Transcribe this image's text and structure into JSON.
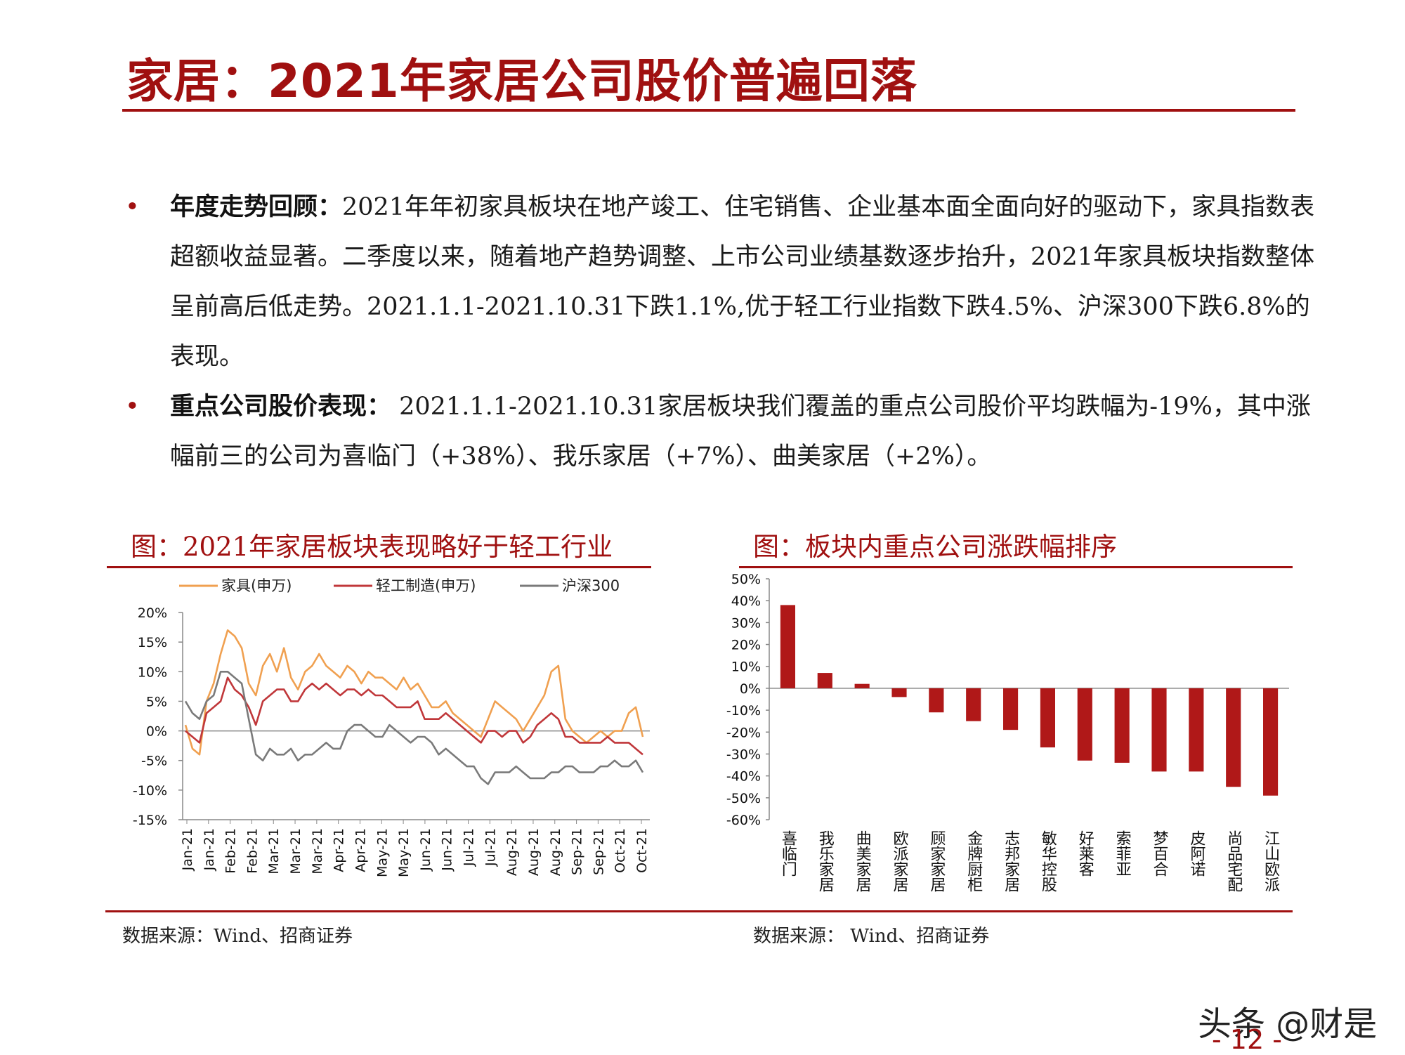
{
  "title": "家居：2021年家居公司股价普遍回落",
  "bullets": [
    {
      "lead": "年度走势回顾：",
      "text": "2021年年初家具板块在地产竣工、住宅销售、企业基本面全面向好的驱动下，家具指数表超额收益显著。二季度以来，随着地产趋势调整、上市公司业绩基数逐步抬升，2021年家具板块指数整体呈前高后低走势。2021.1.1-2021.10.31下跌1.1%,优于轻工行业指数下跌4.5%、沪深300下跌6.8%的表现。"
    },
    {
      "lead": "重点公司股价表现：",
      "text": " 2021.1.1-2021.10.31家居板块我们覆盖的重点公司股价平均跌幅为-19%，其中涨幅前三的公司为喜临门（+38%）、我乐家居（+7%）、曲美家居（+2%）。"
    }
  ],
  "left_chart": {
    "heading": "图：2021年家居板块表现略好于轻工行业",
    "source": "数据来源：Wind、招商证券"
  },
  "right_chart": {
    "heading": "图：板块内重点公司涨跌幅排序",
    "source": "数据来源： Wind、招商证券"
  },
  "watermark": "头条 @财是",
  "page_number": "- 12 -",
  "colors": {
    "accent": "#a01010",
    "furniture": "#f0a050",
    "light_industry": "#c0373a",
    "hs300": "#7a7a7a",
    "bar": "#b01818"
  },
  "chart_data": [
    {
      "type": "line",
      "title": "",
      "ylim": [
        -15,
        20
      ],
      "yticks": [
        "20%",
        "15%",
        "10%",
        "5%",
        "0%",
        "-5%",
        "-10%",
        "-15%"
      ],
      "ytick_values": [
        20,
        15,
        10,
        5,
        0,
        -5,
        -10,
        -15
      ],
      "x_labels": [
        "Jan-21",
        "Jan-21",
        "Feb-21",
        "Feb-21",
        "Mar-21",
        "Mar-21",
        "Mar-21",
        "Apr-21",
        "Apr-21",
        "May-21",
        "May-21",
        "Jun-21",
        "Jun-21",
        "Jul-21",
        "Jul-21",
        "Aug-21",
        "Aug-21",
        "Aug-21",
        "Sep-21",
        "Sep-21",
        "Oct-21",
        "Oct-21"
      ],
      "legend_position": "top",
      "series": [
        {
          "name": "家具(申万)",
          "color": "#f0a050",
          "values": [
            1,
            -3,
            -4,
            5,
            8,
            13,
            17,
            16,
            14,
            8,
            6,
            11,
            13,
            10,
            14,
            9,
            7,
            10,
            11,
            13,
            11,
            10,
            9,
            11,
            10,
            8,
            10,
            9,
            9,
            8,
            7,
            9,
            7,
            8,
            6,
            4,
            4,
            5,
            3,
            2,
            1,
            0,
            -1,
            2,
            5,
            4,
            3,
            2,
            0,
            2,
            4,
            6,
            10,
            11,
            2,
            0,
            -1,
            -2,
            -1,
            0,
            -1,
            0,
            0,
            3,
            4,
            -1
          ]
        },
        {
          "name": "轻工制造(申万)",
          "color": "#c0373a",
          "values": [
            0,
            -1,
            -2,
            3,
            4,
            5,
            9,
            7,
            6,
            4,
            1,
            5,
            6,
            7,
            7,
            5,
            5,
            7,
            8,
            7,
            8,
            7,
            6,
            7,
            7,
            6,
            7,
            6,
            6,
            5,
            4,
            4,
            4,
            5,
            2,
            2,
            2,
            3,
            2,
            1,
            0,
            -1,
            -2,
            0,
            0,
            -1,
            0,
            0,
            -2,
            -1,
            1,
            2,
            3,
            2,
            -1,
            -1,
            -2,
            -2,
            -2,
            -2,
            -1,
            -2,
            -2,
            -2,
            -3,
            -4
          ]
        },
        {
          "name": "沪深300",
          "color": "#7a7a7a",
          "values": [
            5,
            3,
            2,
            5,
            6,
            10,
            10,
            9,
            8,
            2,
            -4,
            -5,
            -3,
            -4,
            -4,
            -3,
            -5,
            -4,
            -4,
            -3,
            -2,
            -3,
            -3,
            0,
            1,
            1,
            0,
            -1,
            -1,
            1,
            0,
            -1,
            -2,
            -1,
            -1,
            -2,
            -4,
            -3,
            -4,
            -5,
            -6,
            -6,
            -8,
            -9,
            -7,
            -7,
            -7,
            -6,
            -7,
            -8,
            -8,
            -8,
            -7,
            -7,
            -6,
            -6,
            -7,
            -7,
            -7,
            -6,
            -6,
            -5,
            -6,
            -6,
            -5,
            -7
          ]
        }
      ]
    },
    {
      "type": "bar",
      "title": "",
      "ylim": [
        -60,
        50
      ],
      "yticks": [
        "50%",
        "40%",
        "30%",
        "20%",
        "10%",
        "0%",
        "-10%",
        "-20%",
        "-30%",
        "-40%",
        "-50%",
        "-60%"
      ],
      "ytick_values": [
        50,
        40,
        30,
        20,
        10,
        0,
        -10,
        -20,
        -30,
        -40,
        -50,
        -60
      ],
      "categories": [
        "喜临门",
        "我乐家居",
        "曲美家居",
        "欧派家居",
        "顾家家居",
        "金牌厨柜",
        "志邦家居",
        "敏华控股",
        "好莱客",
        "索菲亚",
        "梦百合",
        "皮阿诺",
        "尚品宅配",
        "江山欧派"
      ],
      "values": [
        38,
        7,
        2,
        -4,
        -11,
        -15,
        -19,
        -27,
        -33,
        -34,
        -38,
        -38,
        -45,
        -49
      ]
    }
  ]
}
